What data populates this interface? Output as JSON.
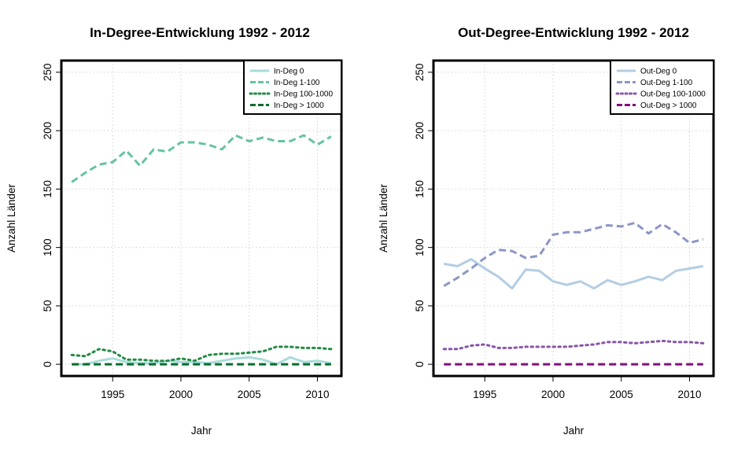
{
  "chart_data": [
    {
      "type": "line",
      "title": "In-Degree-Entwicklung 1992 - 2012",
      "xlabel": "Jahr",
      "ylabel": "Anzahl Länder",
      "xlim": [
        1992,
        2011
      ],
      "ylim": [
        0,
        250
      ],
      "x_ticks": [
        1995,
        2000,
        2005,
        2010
      ],
      "y_ticks": [
        0,
        50,
        100,
        150,
        200,
        250
      ],
      "grid": true,
      "legend_position": "top-right",
      "x": [
        1992,
        1993,
        1994,
        1995,
        1996,
        1997,
        1998,
        1999,
        2000,
        2001,
        2002,
        2003,
        2004,
        2005,
        2006,
        2007,
        2008,
        2009,
        2010,
        2011
      ],
      "series": [
        {
          "name": "In-Deg 0",
          "color": "#a8dcdc",
          "style": "solid",
          "values": [
            0,
            0,
            3,
            5,
            2,
            1,
            1,
            3,
            2,
            2,
            1,
            3,
            5,
            6,
            4,
            0,
            6,
            2,
            3,
            1
          ]
        },
        {
          "name": "In-Deg 1-100",
          "color": "#66c2a4",
          "style": "dashed",
          "values": [
            156,
            164,
            171,
            173,
            183,
            170,
            184,
            182,
            190,
            190,
            188,
            184,
            196,
            191,
            194,
            191,
            191,
            196,
            188,
            195
          ]
        },
        {
          "name": "In-Deg 100-1000",
          "color": "#238b45",
          "style": "dotted",
          "values": [
            8,
            7,
            13,
            11,
            4,
            4,
            3,
            3,
            5,
            3,
            8,
            9,
            9,
            10,
            11,
            15,
            15,
            14,
            14,
            13
          ]
        },
        {
          "name": "In-Deg > 1000",
          "color": "#006d2c",
          "style": "dashed",
          "values": [
            0,
            0,
            0,
            0,
            0,
            0,
            0,
            0,
            0,
            0,
            0,
            0,
            0,
            0,
            0,
            0,
            0,
            0,
            0,
            0
          ]
        }
      ]
    },
    {
      "type": "line",
      "title": "Out-Degree-Entwicklung 1992 - 2012",
      "xlabel": "Jahr",
      "ylabel": "Anzahl Länder",
      "xlim": [
        1992,
        2011
      ],
      "ylim": [
        0,
        250
      ],
      "x_ticks": [
        1995,
        2000,
        2005,
        2010
      ],
      "y_ticks": [
        0,
        50,
        100,
        150,
        200,
        250
      ],
      "grid": true,
      "legend_position": "top-right",
      "x": [
        1992,
        1993,
        1994,
        1995,
        1996,
        1997,
        1998,
        1999,
        2000,
        2001,
        2002,
        2003,
        2004,
        2005,
        2006,
        2007,
        2008,
        2009,
        2010,
        2011
      ],
      "series": [
        {
          "name": "Out-Deg 0",
          "color": "#b3cde3",
          "style": "solid",
          "values": [
            86,
            84,
            90,
            82,
            75,
            65,
            81,
            80,
            71,
            68,
            71,
            65,
            72,
            68,
            71,
            75,
            72,
            80,
            82,
            84
          ]
        },
        {
          "name": "Out-Deg 1-100",
          "color": "#8c96c6",
          "style": "dashed",
          "values": [
            67,
            74,
            82,
            91,
            98,
            97,
            91,
            93,
            111,
            113,
            113,
            116,
            119,
            118,
            121,
            112,
            120,
            113,
            104,
            107
          ]
        },
        {
          "name": "Out-Deg 100-1000",
          "color": "#8856a7",
          "style": "dotted",
          "values": [
            13,
            13,
            16,
            17,
            14,
            14,
            15,
            15,
            15,
            15,
            16,
            17,
            19,
            19,
            18,
            19,
            20,
            19,
            19,
            18
          ]
        },
        {
          "name": "Out-Deg > 1000",
          "color": "#810f7c",
          "style": "dashed",
          "values": [
            0,
            0,
            0,
            0,
            0,
            0,
            0,
            0,
            0,
            0,
            0,
            0,
            0,
            0,
            0,
            0,
            0,
            0,
            0,
            0
          ]
        }
      ]
    }
  ]
}
